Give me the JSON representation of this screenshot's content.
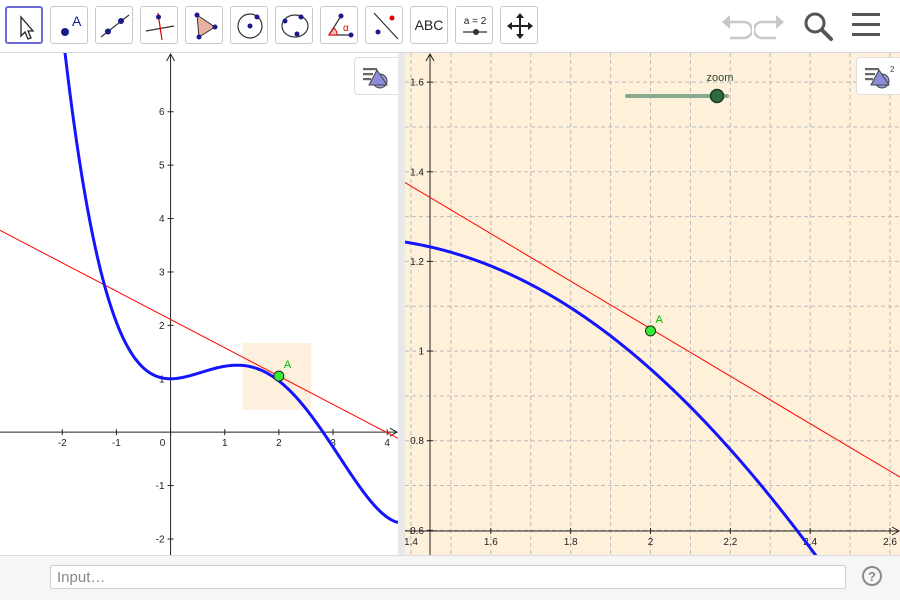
{
  "colors": {
    "curve": "#1414ff",
    "tangent": "#ff0000",
    "point": "#33ee33",
    "view2_bg": "#fff0d9",
    "zoom_rect": "#fdf0dc",
    "slider": "#2e6b3c"
  },
  "toolbar": {
    "tools": [
      {
        "icon": "move-arrow-icon"
      },
      {
        "icon": "point-icon",
        "letter": "A"
      },
      {
        "icon": "line-icon"
      },
      {
        "icon": "perpendicular-line-icon"
      },
      {
        "icon": "polygon-icon"
      },
      {
        "icon": "circle-center-point-icon"
      },
      {
        "icon": "circle-three-points-icon"
      },
      {
        "icon": "angle-icon",
        "letter": "α"
      },
      {
        "icon": "reflect-about-line-icon"
      },
      {
        "icon": "text-icon",
        "label": "ABC"
      },
      {
        "icon": "slider-icon",
        "label": "a = 2"
      },
      {
        "icon": "move-graphics-view-icon"
      }
    ],
    "undo_icon": "undo-icon",
    "redo_icon": "redo-icon",
    "search_icon": "search-icon",
    "menu_icon": "hamburger-menu-icon"
  },
  "view1": {
    "x_range": [
      -3.15,
      4.2
    ],
    "y_range": [
      -2.3,
      7.1
    ],
    "x_ticks": [
      "-2",
      "-1",
      "0",
      "1",
      "2",
      "3",
      "4"
    ],
    "y_ticks": [
      "-2",
      "-1",
      "1",
      "2",
      "3",
      "4",
      "5",
      "6"
    ],
    "point_label": "A",
    "point": [
      2,
      1.05
    ],
    "zoom_rect_x": [
      1.33,
      2.6
    ],
    "zoom_rect_y": [
      0.42,
      1.67
    ],
    "grid": false
  },
  "view2": {
    "x_range": [
      1.385,
      2.625
    ],
    "y_range": [
      0.545,
      1.665
    ],
    "x_ticks": [
      "1.4",
      "1.6",
      "1.8",
      "2",
      "2.2",
      "2.4",
      "2.6"
    ],
    "y_ticks": [
      "0.6",
      "0.8",
      "1",
      "1.2",
      "1.4",
      "1.6"
    ],
    "point_label": "A",
    "point": [
      2,
      1.045
    ],
    "grid": true,
    "slider_label": "zoom"
  },
  "function": {
    "tangent_slope": -0.53,
    "tangent_intercept": 2.11
  },
  "input_bar": {
    "placeholder": "Input…",
    "help_label": "?"
  }
}
